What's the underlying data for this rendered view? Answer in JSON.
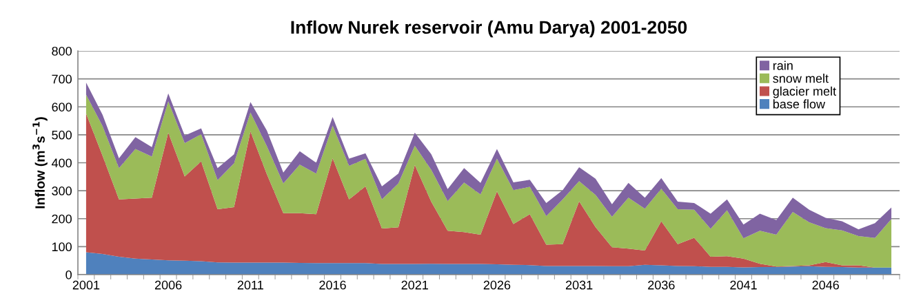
{
  "chart_data": {
    "type": "area",
    "title": "Inflow Nurek reservoir (Amu Darya) 2001-2050",
    "ylabel": "Inflow (m$^{3}$s$^{−1}$)",
    "categories": [
      "2001",
      null,
      null,
      null,
      null,
      "2006",
      null,
      null,
      null,
      null,
      "2011",
      null,
      null,
      null,
      null,
      "2016",
      null,
      null,
      null,
      null,
      "2021",
      null,
      null,
      null,
      null,
      "2026",
      null,
      null,
      null,
      null,
      "2031",
      null,
      null,
      null,
      null,
      "2036",
      null,
      null,
      null,
      null,
      "2041",
      null,
      null,
      null,
      null,
      "2046",
      null,
      null,
      null,
      null
    ],
    "stacked": true,
    "ylim": [
      0,
      800
    ],
    "yticks": [
      0,
      100,
      200,
      300,
      400,
      500,
      600,
      700,
      800
    ],
    "grid": "y",
    "legend": "top right",
    "series": [
      {
        "name": "base flow",
        "color": "#4f81bd",
        "values": [
          80,
          74,
          64,
          57,
          54,
          51,
          50,
          48,
          44,
          43,
          43,
          43,
          43,
          42,
          41,
          41,
          41,
          41,
          38,
          38,
          38,
          39,
          38,
          38,
          38,
          37,
          35,
          34,
          31,
          31,
          31,
          31,
          30,
          30,
          35,
          33,
          31,
          30,
          28,
          28,
          26,
          27,
          27,
          29,
          30,
          28,
          27,
          25,
          25,
          25
        ]
      },
      {
        "name": "glacier melt",
        "color": "#c0504d",
        "values": [
          496,
          351,
          205,
          215,
          221,
          457,
          301,
          357,
          190,
          198,
          469,
          316,
          177,
          178,
          175,
          375,
          228,
          275,
          127,
          131,
          354,
          222,
          119,
          114,
          105,
          261,
          146,
          182,
          76,
          78,
          231,
          139,
          68,
          63,
          51,
          158,
          78,
          102,
          36,
          38,
          31,
          12,
          2,
          2,
          3,
          17,
          6,
          8,
          0,
          0
        ]
      },
      {
        "name": "snow melt",
        "color": "#9bbb59",
        "values": [
          68,
          106,
          112,
          177,
          147,
          112,
          119,
          97,
          104,
          157,
          68,
          100,
          106,
          173,
          145,
          117,
          120,
          98,
          104,
          157,
          69,
          114,
          106,
          177,
          144,
          117,
          121,
          98,
          102,
          160,
          72,
          115,
          109,
          182,
          150,
          116,
          125,
          100,
          100,
          164,
          73,
          118,
          114,
          193,
          154,
          121,
          125,
          105,
          106,
          174
        ]
      },
      {
        "name": "rain",
        "color": "#8064a2",
        "values": [
          43,
          41,
          35,
          43,
          34,
          28,
          27,
          21,
          43,
          32,
          37,
          56,
          39,
          48,
          39,
          31,
          26,
          20,
          47,
          35,
          47,
          56,
          43,
          52,
          41,
          34,
          28,
          25,
          47,
          33,
          50,
          58,
          45,
          53,
          39,
          38,
          27,
          24,
          54,
          39,
          49,
          61,
          52,
          51,
          45,
          37,
          33,
          24,
          53,
          41
        ]
      }
    ]
  }
}
